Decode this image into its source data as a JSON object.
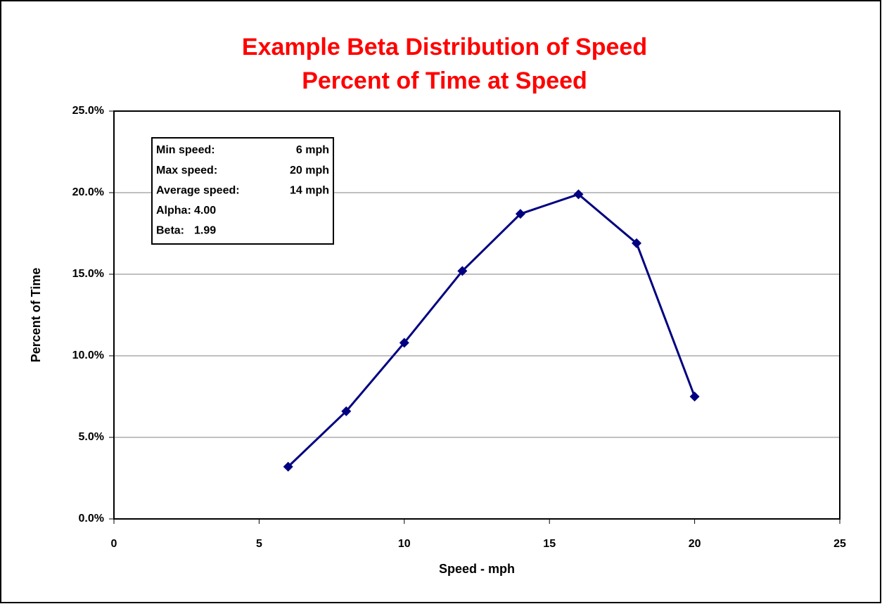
{
  "chart_data": {
    "type": "line",
    "title": [
      "Example Beta Distribution of Speed",
      "Percent of Time at Speed"
    ],
    "xlabel": "Speed - mph",
    "ylabel": "Percent of Time",
    "x": [
      6,
      8,
      10,
      12,
      14,
      16,
      18,
      20
    ],
    "series": [
      {
        "name": "Percent of Time",
        "color": "#000080",
        "values": [
          3.2,
          6.6,
          10.8,
          15.2,
          18.7,
          19.9,
          16.9,
          7.5
        ]
      }
    ],
    "xlim": [
      0,
      25
    ],
    "xticks": [
      0,
      5,
      10,
      15,
      20,
      25
    ],
    "ylim": [
      0,
      25
    ],
    "yticks": [
      {
        "value": 0,
        "label": "0.0%"
      },
      {
        "value": 5,
        "label": "5.0%"
      },
      {
        "value": 10,
        "label": "10.0%"
      },
      {
        "value": 15,
        "label": "15.0%"
      },
      {
        "value": 20,
        "label": "20.0%"
      },
      {
        "value": 25,
        "label": "25.0%"
      }
    ],
    "grid": true,
    "annotation": {
      "stats": [
        {
          "label": "Min speed:",
          "value": "6 mph"
        },
        {
          "label": "Max speed:",
          "value": "20 mph"
        },
        {
          "label": "Average speed:",
          "value": "14 mph"
        }
      ],
      "params": [
        {
          "label": "Alpha:",
          "value": "4.00"
        },
        {
          "label": "Beta:",
          "value": "1.99"
        }
      ]
    }
  }
}
